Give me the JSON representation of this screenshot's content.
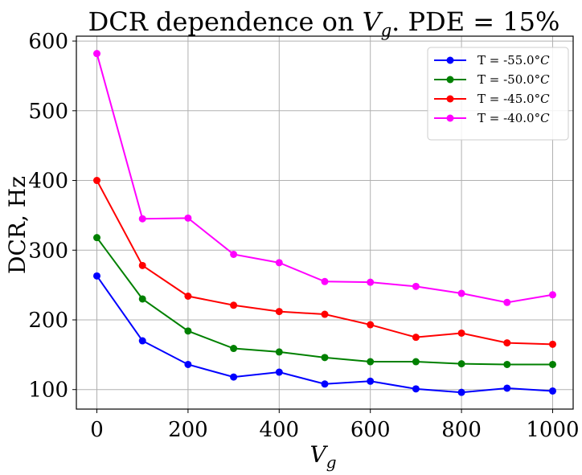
{
  "chart_data": {
    "type": "line",
    "title": "DCR dependence on V_g. PDE = 15%",
    "title_parts": {
      "prefix": "DCR dependence on ",
      "var": "V",
      "sub": "g",
      "suffix": ". PDE = 15%"
    },
    "xlabel": {
      "var": "V",
      "sub": "g"
    },
    "ylabel": "DCR, Hz",
    "xlim": [
      -45,
      1045
    ],
    "ylim": [
      72,
      607
    ],
    "xticks": [
      0,
      200,
      400,
      600,
      800,
      1000
    ],
    "yticks": [
      100,
      200,
      300,
      400,
      500,
      600
    ],
    "grid": true,
    "legend_position": "top-right",
    "x": [
      0,
      100,
      200,
      300,
      400,
      500,
      600,
      700,
      800,
      900,
      1000
    ],
    "series": [
      {
        "name": "T = -55.0°C",
        "name_prefix": "T = -55.0",
        "unit": "°C",
        "color": "#0000ff",
        "values": [
          263,
          170,
          136,
          118,
          125,
          108,
          112,
          101,
          96,
          102,
          98
        ]
      },
      {
        "name": "T = -50.0°C",
        "name_prefix": "T = -50.0",
        "unit": "°C",
        "color": "#008000",
        "values": [
          318,
          230,
          184,
          159,
          154,
          146,
          140,
          140,
          137,
          136,
          136
        ]
      },
      {
        "name": "T = -45.0°C",
        "name_prefix": "T = -45.0",
        "unit": "°C",
        "color": "#ff0000",
        "values": [
          400,
          278,
          234,
          221,
          212,
          208,
          193,
          175,
          181,
          167,
          165
        ]
      },
      {
        "name": "T = -40.0°C",
        "name_prefix": "T = -40.0",
        "unit": "°C",
        "color": "#ff00ff",
        "values": [
          582,
          345,
          346,
          294,
          282,
          255,
          254,
          248,
          238,
          225,
          236
        ]
      }
    ]
  }
}
